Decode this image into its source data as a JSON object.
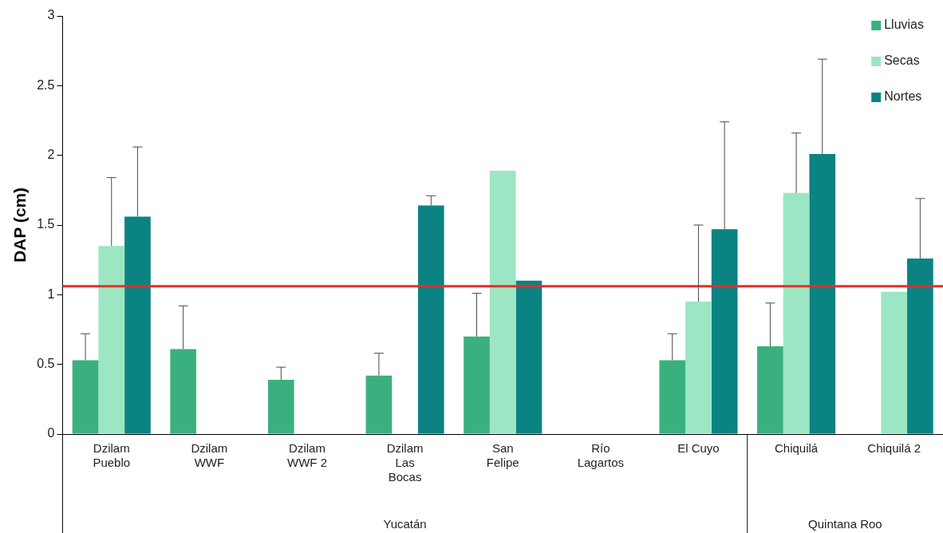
{
  "chart_data": {
    "type": "bar",
    "ylabel": "DAP (cm)",
    "categories": [
      "Dzilam Pueblo",
      "Dzilam WWF",
      "Dzilam WWF 2",
      "Dzilam Las Bocas",
      "San Felipe",
      "Río Lagartos",
      "El Cuyo",
      "Chiquilá",
      "Chiquilá 2"
    ],
    "series": [
      {
        "name": "Lluvias",
        "color": "#3bb07f",
        "values": [
          0.53,
          0.61,
          0.39,
          0.42,
          0.7,
          null,
          0.53,
          0.63,
          null
        ],
        "errors": [
          [
            0.53,
            0.72
          ],
          [
            0.61,
            0.92
          ],
          [
            0.39,
            0.48
          ],
          [
            0.42,
            0.58
          ],
          [
            0.7,
            1.01
          ],
          null,
          [
            0.53,
            0.72
          ],
          [
            0.63,
            0.94
          ],
          null
        ]
      },
      {
        "name": "Secas",
        "color": "#9ce6c4",
        "values": [
          1.35,
          null,
          null,
          null,
          1.89,
          null,
          0.95,
          1.73,
          1.02
        ],
        "errors": [
          [
            1.35,
            1.84
          ],
          null,
          null,
          null,
          null,
          null,
          [
            0.95,
            1.5
          ],
          [
            1.73,
            2.16
          ],
          null
        ]
      },
      {
        "name": "Nortes",
        "color": "#0b8383",
        "values": [
          1.56,
          null,
          null,
          1.64,
          1.1,
          null,
          1.47,
          2.01,
          1.26
        ],
        "errors": [
          [
            1.56,
            2.06
          ],
          null,
          null,
          [
            1.64,
            1.71
          ],
          null,
          null,
          [
            1.47,
            2.24
          ],
          [
            2.01,
            2.69
          ],
          [
            1.26,
            1.69
          ]
        ]
      }
    ],
    "ylim": [
      0,
      3
    ],
    "yticks": [
      0,
      0.5,
      1,
      1.5,
      2,
      2.5,
      3
    ],
    "ref_lines": [
      {
        "axis": "y",
        "value": 1.06,
        "color": "#e0302a"
      }
    ],
    "annotations": [
      "Yucatán",
      "Quintana Roo"
    ],
    "legend": "top right",
    "grid": false
  }
}
